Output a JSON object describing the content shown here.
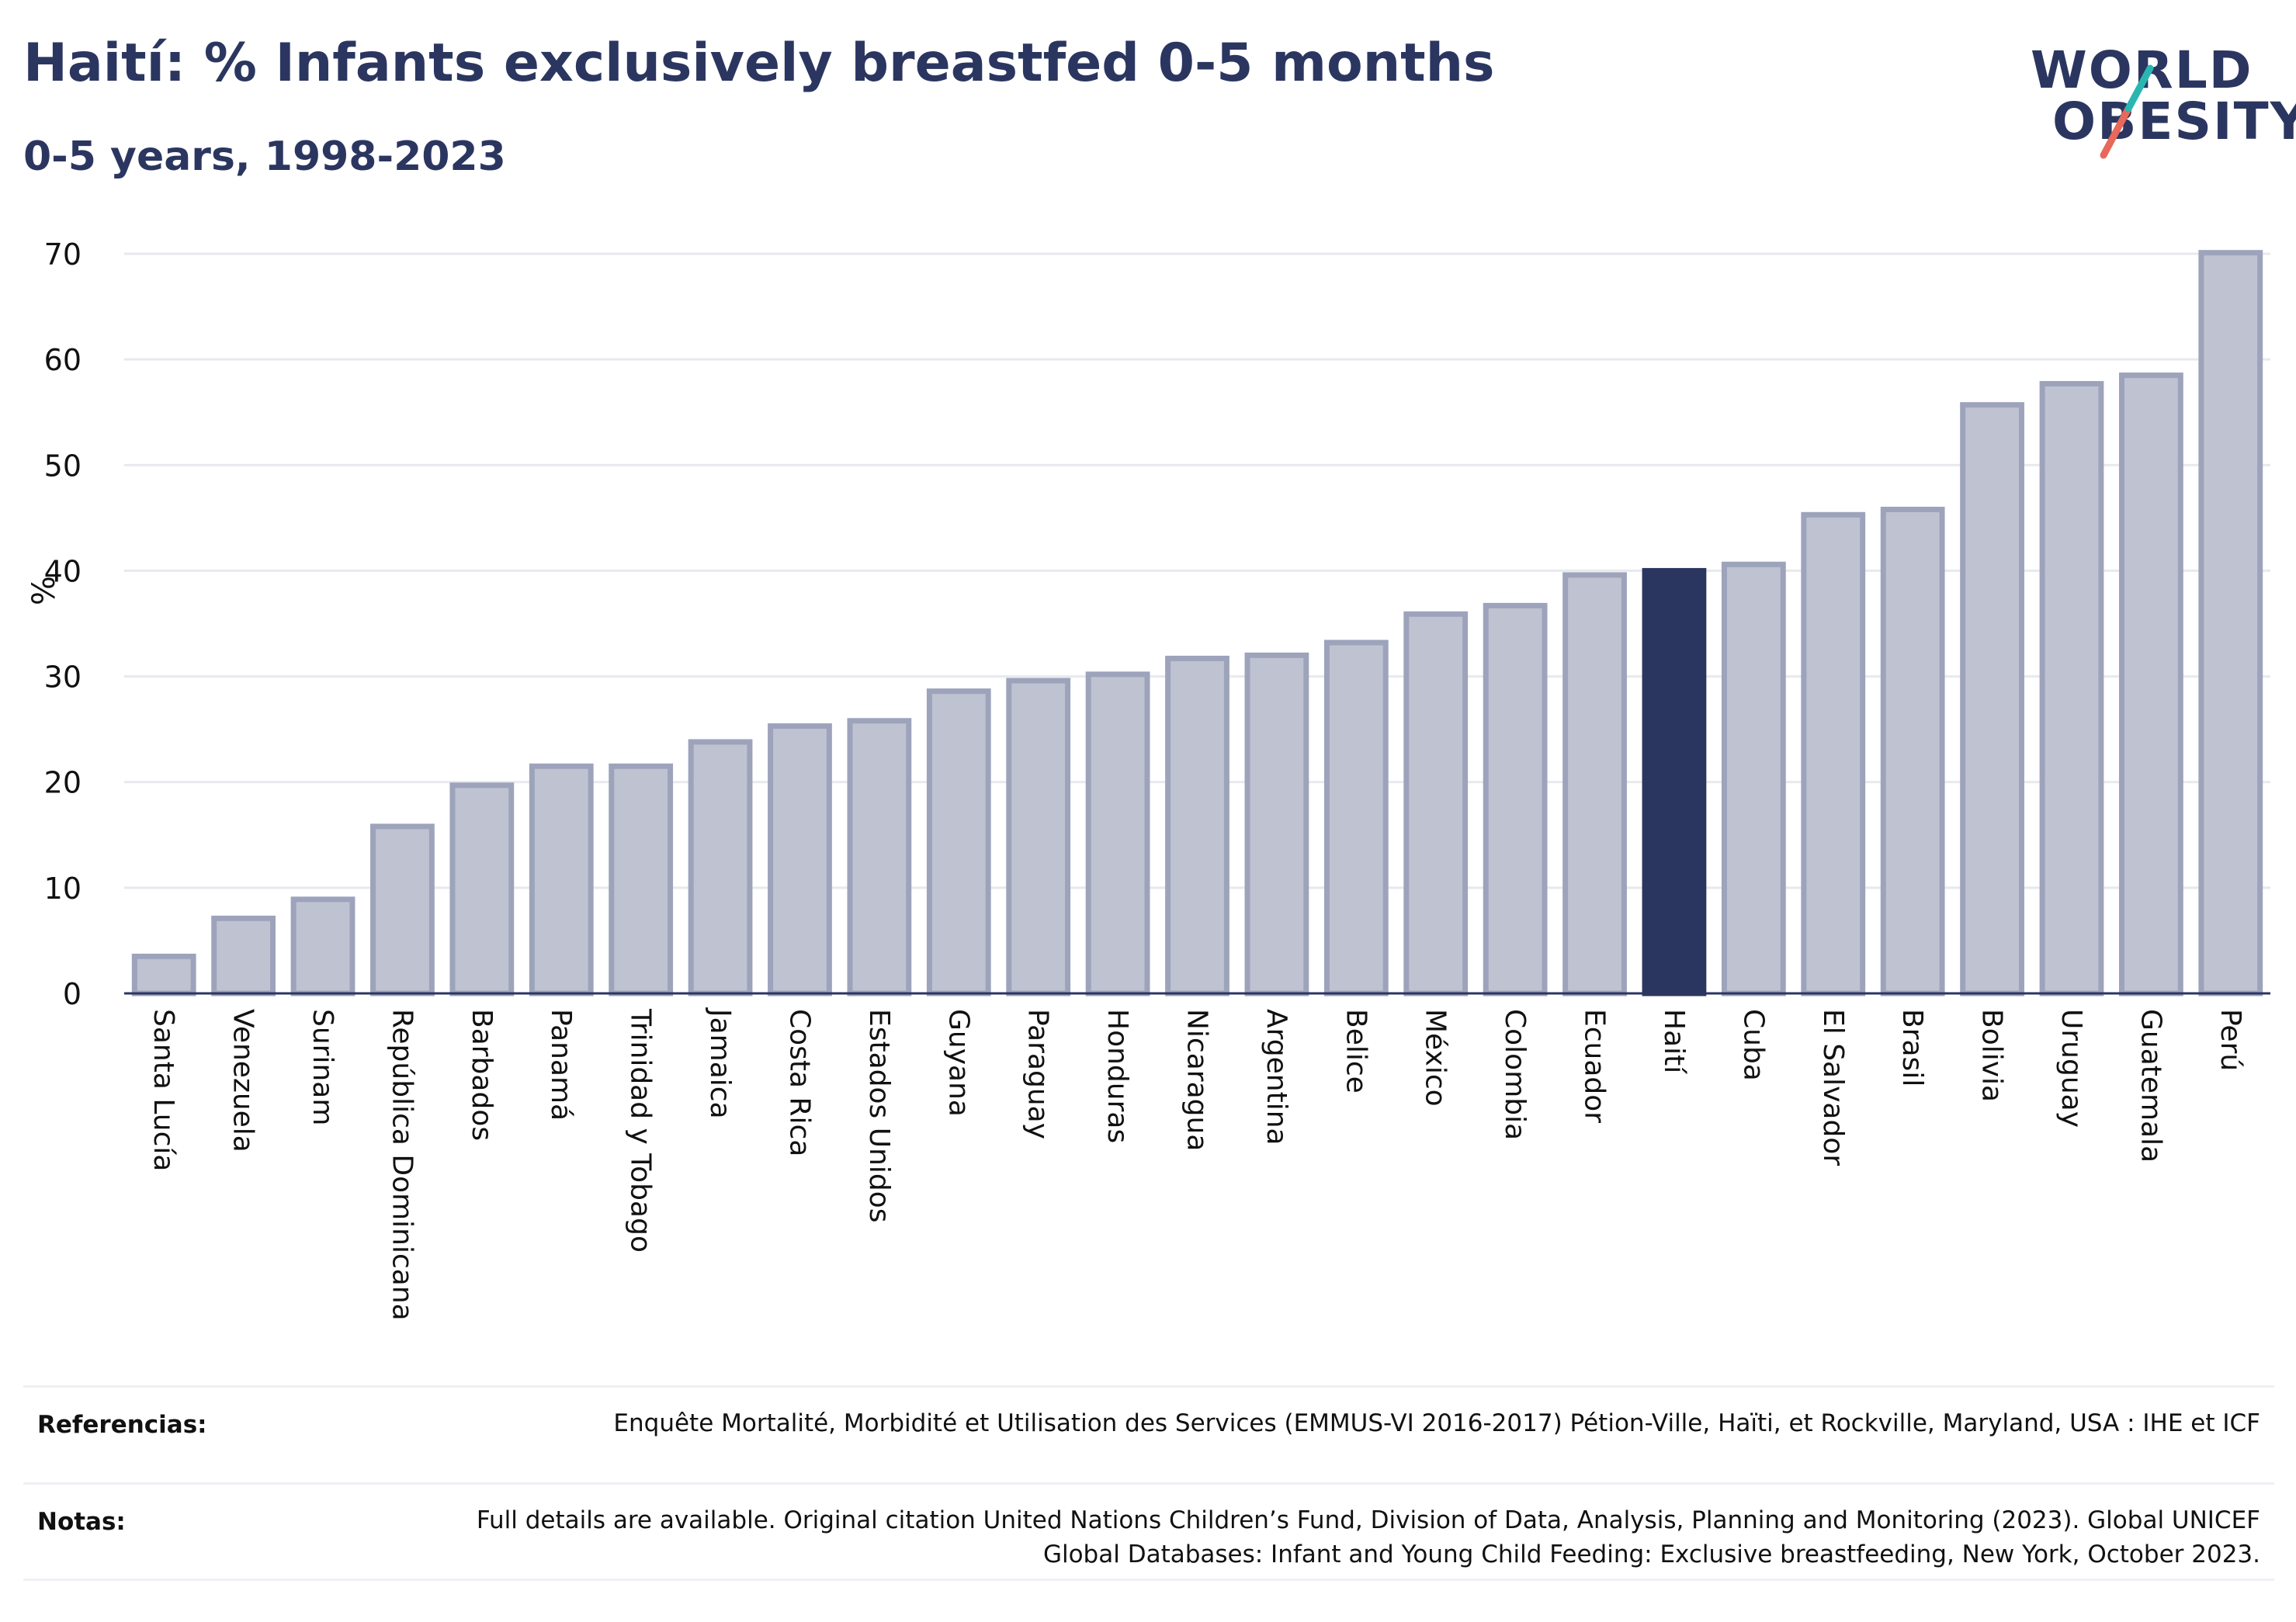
{
  "header": {
    "title": "Haití: % Infants exclusively breastfed 0-5 months",
    "subtitle": "0-5 years, 1998-2023"
  },
  "logo": {
    "line1": "WORLD",
    "line2": "OBESITY",
    "accent_colors": [
      "#2ab6b0",
      "#e8685a"
    ]
  },
  "colors": {
    "bar": "#bfc2d0",
    "bar_edge": "#9da3bb",
    "highlight": "#2b3660",
    "grid": "#e8e9ee"
  },
  "chart_data": {
    "type": "bar",
    "categories": [
      "Santa Lucía",
      "Venezuela",
      "Surinam",
      "República Dominicana",
      "Barbados",
      "Panamá",
      "Trinidad y Tobago",
      "Jamaica",
      "Costa Rica",
      "Estados Unidos",
      "Guyana",
      "Paraguay",
      "Honduras",
      "Nicaragua",
      "Argentina",
      "Belice",
      "México",
      "Colombia",
      "Ecuador",
      "Haití",
      "Cuba",
      "El Salvador",
      "Brasil",
      "Bolivia",
      "Uruguay",
      "Guatemala",
      "Perú"
    ],
    "values": [
      3.5,
      7.1,
      8.9,
      15.8,
      19.7,
      21.5,
      21.5,
      23.8,
      25.3,
      25.8,
      28.6,
      29.6,
      30.2,
      31.7,
      32.0,
      33.2,
      35.9,
      36.7,
      39.6,
      40.0,
      40.6,
      45.3,
      45.8,
      55.7,
      57.7,
      58.5,
      70.1
    ],
    "highlight": "Haití",
    "ylabel": "%",
    "ylim": [
      0,
      70
    ],
    "yticks": [
      0,
      10,
      20,
      30,
      40,
      50,
      60,
      70
    ],
    "grid": true
  },
  "footer": {
    "references_label": "Referencias:",
    "references_text": "Enquête Mortalité, Morbidité et Utilisation des Services (EMMUS-VI 2016-2017) Pétion-Ville, Haïti, et Rockville, Maryland, USA : IHE et ICF",
    "notes_label": "Notas:",
    "notes_text": "Full details are available. Original citation United Nations Children’s Fund, Division of Data, Analysis, Planning and Monitoring (2023). Global UNICEF Global Databases: Infant and Young Child Feeding: Exclusive breastfeeding, New York, October 2023."
  }
}
